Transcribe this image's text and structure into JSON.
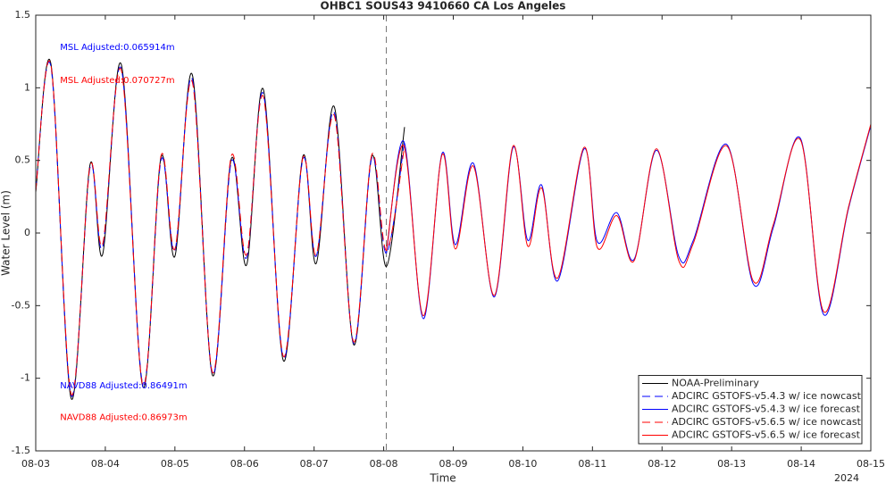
{
  "chart_data": {
    "type": "line",
    "title": "OHBC1 SOUS43 9410660 CA Los Angeles",
    "y_label": "Water Level (m)",
    "x_label": "Time",
    "x_year_label": "2024",
    "xlim": [
      0,
      12
    ],
    "ylim": [
      -1.5,
      1.5
    ],
    "xticks": [
      {
        "value": 0,
        "label": "08-03"
      },
      {
        "value": 1,
        "label": "08-04"
      },
      {
        "value": 2,
        "label": "08-05"
      },
      {
        "value": 3,
        "label": "08-06"
      },
      {
        "value": 4,
        "label": "08-07"
      },
      {
        "value": 5,
        "label": "08-08"
      },
      {
        "value": 6,
        "label": "08-09"
      },
      {
        "value": 7,
        "label": "08-10"
      },
      {
        "value": 8,
        "label": "08-11"
      },
      {
        "value": 9,
        "label": "08-12"
      },
      {
        "value": 10,
        "label": "08-13"
      },
      {
        "value": 11,
        "label": "08-14"
      },
      {
        "value": 12,
        "label": "08-15"
      }
    ],
    "yticks": [
      -1.5,
      -1,
      -0.5,
      0,
      0.5,
      1,
      1.5
    ],
    "annotations": [
      {
        "text": "MSL Adjusted:0.065914m",
        "color": "#0000ff",
        "x": 0.35,
        "y": 1.28
      },
      {
        "text": "MSL Adjusted:0.070727m",
        "color": "#ff0000",
        "x": 0.35,
        "y": 1.05
      },
      {
        "text": "NAVD88 Adjusted:0.86491m",
        "color": "#0000ff",
        "x": 0.35,
        "y": -1.05
      },
      {
        "text": "NAVD88 Adjusted:0.86973m",
        "color": "#ff0000",
        "x": 0.35,
        "y": -1.27
      }
    ],
    "series": [
      {
        "name": "NOAA-Preliminary",
        "color": "#000000",
        "dashed": false,
        "x": [
          0,
          0.22,
          0.51,
          0.78,
          0.96,
          1.23,
          1.54,
          1.8,
          2.0,
          2.25,
          2.54,
          2.81,
          3.03,
          3.27,
          3.56,
          3.84,
          4.03,
          4.29,
          4.57,
          4.83,
          5.04,
          5.3
        ],
        "values": [
          0.28,
          1.16,
          -1.14,
          0.47,
          -0.15,
          1.16,
          -1.06,
          0.52,
          -0.16,
          1.09,
          -0.98,
          0.51,
          -0.22,
          0.99,
          -0.88,
          0.53,
          -0.21,
          0.87,
          -0.77,
          0.53,
          -0.23,
          0.73
        ]
      },
      {
        "name": "ADCIRC GSTOFS-v5.4.3 w/ ice nowcast",
        "color": "#0000ff",
        "dashed": true,
        "x": [
          0,
          0.22,
          0.51,
          0.78,
          0.96,
          1.23,
          1.54,
          1.8,
          2.0,
          2.25,
          2.54,
          2.81,
          3.03,
          3.27,
          3.56,
          3.84,
          4.03,
          4.29,
          4.57,
          4.83,
          5.04,
          5.3
        ],
        "values": [
          0.3,
          1.14,
          -1.12,
          0.45,
          -0.1,
          1.13,
          -1.04,
          0.5,
          -0.12,
          1.06,
          -0.97,
          0.49,
          -0.17,
          0.96,
          -0.86,
          0.51,
          -0.16,
          0.83,
          -0.76,
          0.52,
          -0.14,
          0.64
        ]
      },
      {
        "name": "ADCIRC GSTOFS-v5.4.3 w/ ice forecast",
        "color": "#0000ff",
        "dashed": false,
        "x": [
          5.04,
          5.29,
          5.57,
          5.84,
          6.03,
          6.29,
          6.59,
          6.86,
          7.07,
          7.27,
          7.5,
          7.88,
          8.07,
          8.35,
          8.6,
          8.92,
          9.24,
          9.45,
          9.93,
          10.31,
          10.6,
          10.99,
          11.32,
          11.68,
          12
        ],
        "values": [
          -0.14,
          0.63,
          -0.59,
          0.55,
          -0.08,
          0.48,
          -0.44,
          0.59,
          -0.05,
          0.33,
          -0.33,
          0.58,
          -0.06,
          0.14,
          -0.18,
          0.57,
          -0.16,
          -0.05,
          0.61,
          -0.35,
          0.04,
          0.65,
          -0.56,
          0.17,
          0.74
        ]
      },
      {
        "name": "ADCIRC GSTOFS-v5.6.5 w/ ice nowcast",
        "color": "#ff0000",
        "dashed": true,
        "x": [
          0,
          0.22,
          0.51,
          0.78,
          0.96,
          1.23,
          1.54,
          1.8,
          2.0,
          2.25,
          2.54,
          2.81,
          3.03,
          3.27,
          3.56,
          3.84,
          4.03,
          4.29,
          4.57,
          4.83,
          5.04,
          5.3
        ],
        "values": [
          0.29,
          1.15,
          -1.11,
          0.46,
          -0.08,
          1.12,
          -1.05,
          0.53,
          -0.11,
          1.04,
          -0.96,
          0.53,
          -0.15,
          0.94,
          -0.85,
          0.52,
          -0.15,
          0.81,
          -0.75,
          0.54,
          -0.12,
          0.6
        ]
      },
      {
        "name": "ADCIRC GSTOFS-v5.6.5 w/ ice forecast",
        "color": "#ff0000",
        "dashed": false,
        "x": [
          5.04,
          5.29,
          5.57,
          5.84,
          6.03,
          6.29,
          6.59,
          6.86,
          7.07,
          7.27,
          7.5,
          7.88,
          8.07,
          8.35,
          8.6,
          8.92,
          9.24,
          9.45,
          9.93,
          10.31,
          10.6,
          10.99,
          11.32,
          11.68,
          12
        ],
        "values": [
          -0.12,
          0.6,
          -0.57,
          0.54,
          -0.11,
          0.46,
          -0.43,
          0.6,
          -0.09,
          0.31,
          -0.31,
          0.59,
          -0.1,
          0.12,
          -0.19,
          0.58,
          -0.19,
          -0.07,
          0.6,
          -0.33,
          0.06,
          0.64,
          -0.54,
          0.18,
          0.75
        ]
      }
    ],
    "legend": "lower right"
  }
}
